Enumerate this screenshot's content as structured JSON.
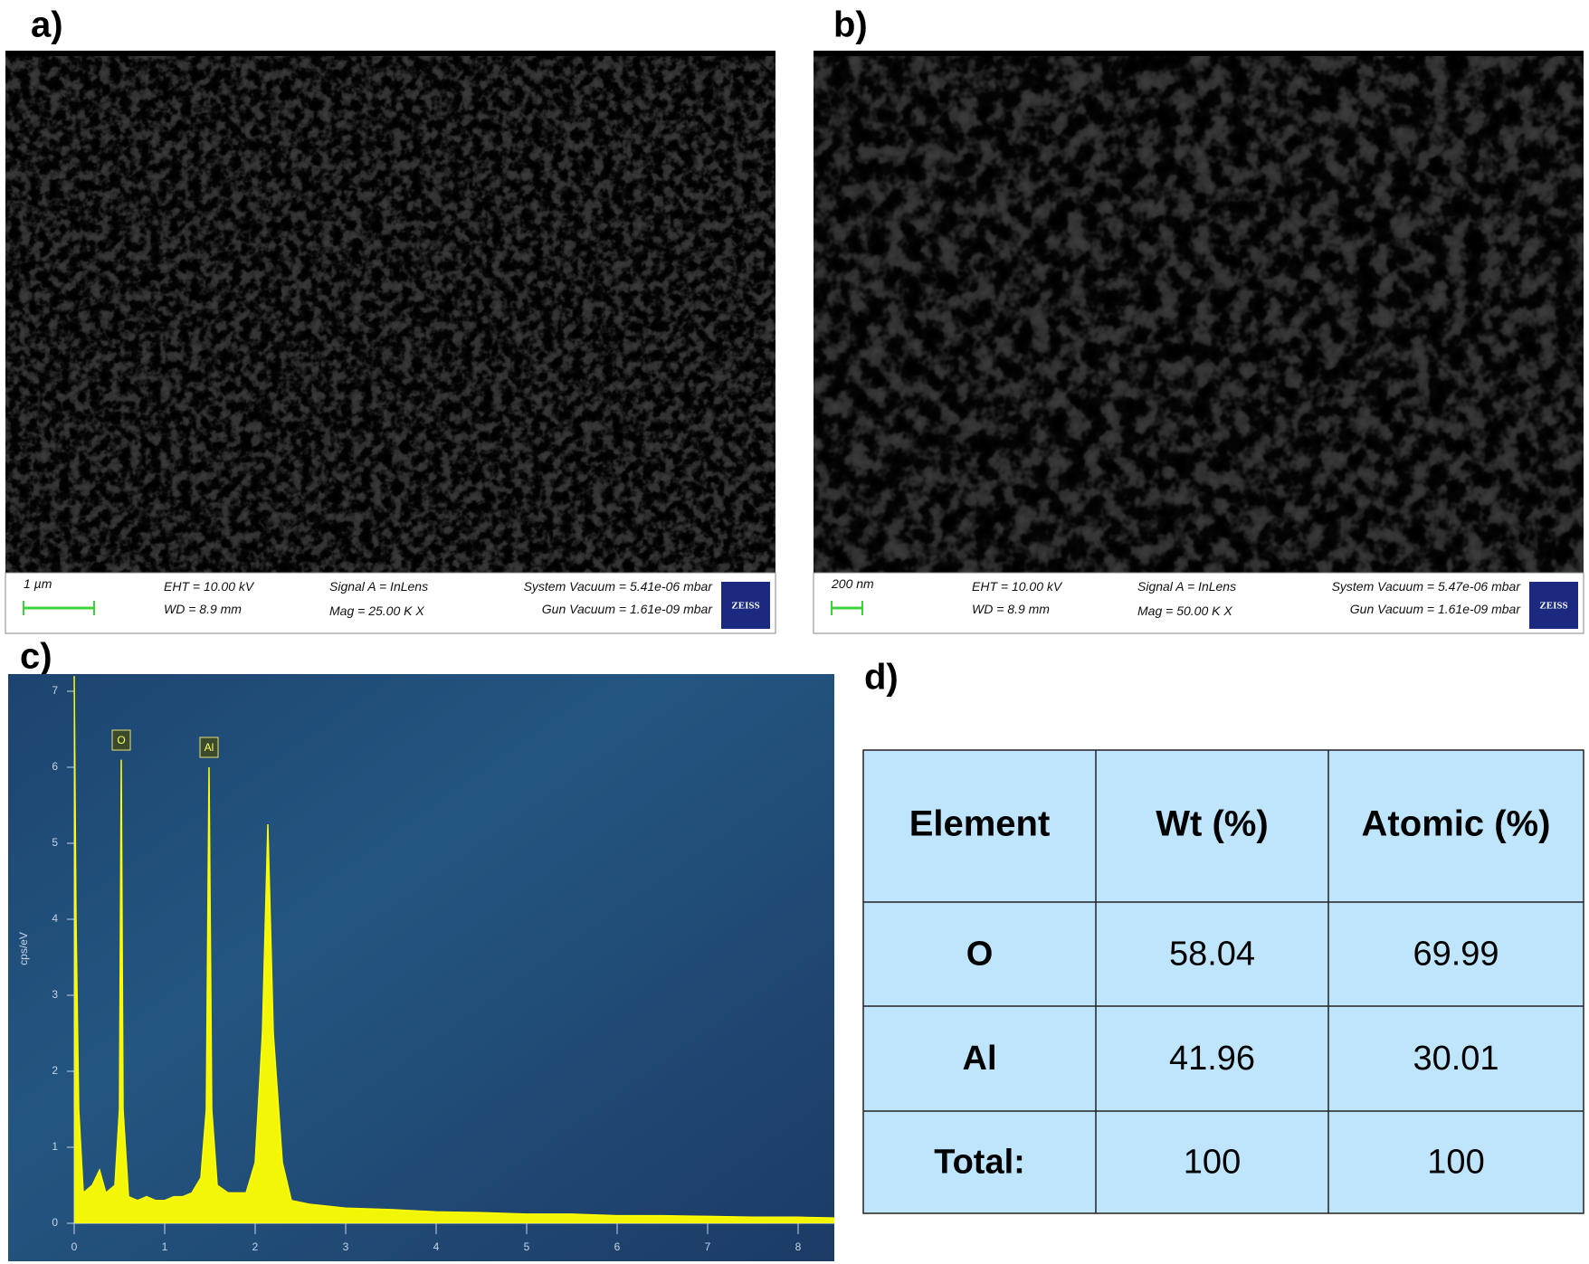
{
  "sem_panels": [
    {
      "label": "a)",
      "scale_bar": "1 µm",
      "eht": "EHT = 10.00 kV",
      "wd": "WD =  8.9 mm",
      "signal": "Signal A = InLens",
      "mag": "Mag =   25.00 K X",
      "system_vacuum": "System Vacuum = 5.41e-06 mbar",
      "gun_vacuum": "Gun Vacuum = 1.61e-09 mbar",
      "logo": "ZEISS"
    },
    {
      "label": "b)",
      "scale_bar": "200 nm",
      "eht": "EHT = 10.00 kV",
      "wd": "WD =  8.9 mm",
      "signal": "Signal A = InLens",
      "mag": "Mag =   50.00 K X",
      "system_vacuum": "System Vacuum = 5.47e-06 mbar",
      "gun_vacuum": "Gun Vacuum = 1.61e-09 mbar",
      "logo": "ZEISS"
    }
  ],
  "chart_data": {
    "type": "area",
    "label": "c)",
    "y_label": "cps/eV",
    "color": "#ffff00",
    "x": [
      0,
      0.02,
      0.05,
      0.1,
      0.2,
      0.28,
      0.35,
      0.45,
      0.5,
      0.52,
      0.54,
      0.6,
      0.7,
      0.8,
      0.9,
      1.0,
      1.1,
      1.2,
      1.3,
      1.4,
      1.46,
      1.49,
      1.52,
      1.58,
      1.7,
      1.9,
      2.0,
      2.08,
      2.14,
      2.2,
      2.3,
      2.4,
      2.6,
      3.0,
      3.5,
      4.0,
      4.5,
      5.0,
      5.5,
      6.0,
      6.5,
      7.0,
      7.5,
      8.0,
      8.4
    ],
    "values": [
      7.2,
      4.0,
      1.5,
      0.4,
      0.5,
      0.7,
      0.4,
      0.5,
      1.5,
      6.1,
      1.5,
      0.35,
      0.3,
      0.35,
      0.3,
      0.3,
      0.35,
      0.35,
      0.4,
      0.6,
      1.5,
      6.0,
      1.5,
      0.5,
      0.4,
      0.4,
      0.8,
      2.5,
      5.25,
      2.5,
      0.8,
      0.3,
      0.25,
      0.2,
      0.18,
      0.15,
      0.14,
      0.12,
      0.12,
      0.1,
      0.1,
      0.09,
      0.08,
      0.08,
      0.07
    ],
    "xlim": [
      0,
      8.4
    ],
    "ylim": [
      0,
      7.2
    ],
    "xticks": [
      0,
      1,
      2,
      3,
      4,
      5,
      6,
      7,
      8
    ],
    "yticks": [
      0,
      1,
      2,
      3,
      4,
      5,
      6,
      7
    ],
    "annotations": [
      {
        "text": "O",
        "x": 0.52
      },
      {
        "text": "Al",
        "x": 1.49
      }
    ]
  },
  "table": {
    "label": "d)",
    "header": [
      "Element",
      "Wt (%)",
      "Atomic (%)"
    ],
    "rows": [
      [
        "O",
        58.04,
        69.99
      ],
      [
        "Al",
        41.96,
        30.01
      ],
      [
        "Total:",
        100,
        100
      ]
    ]
  }
}
